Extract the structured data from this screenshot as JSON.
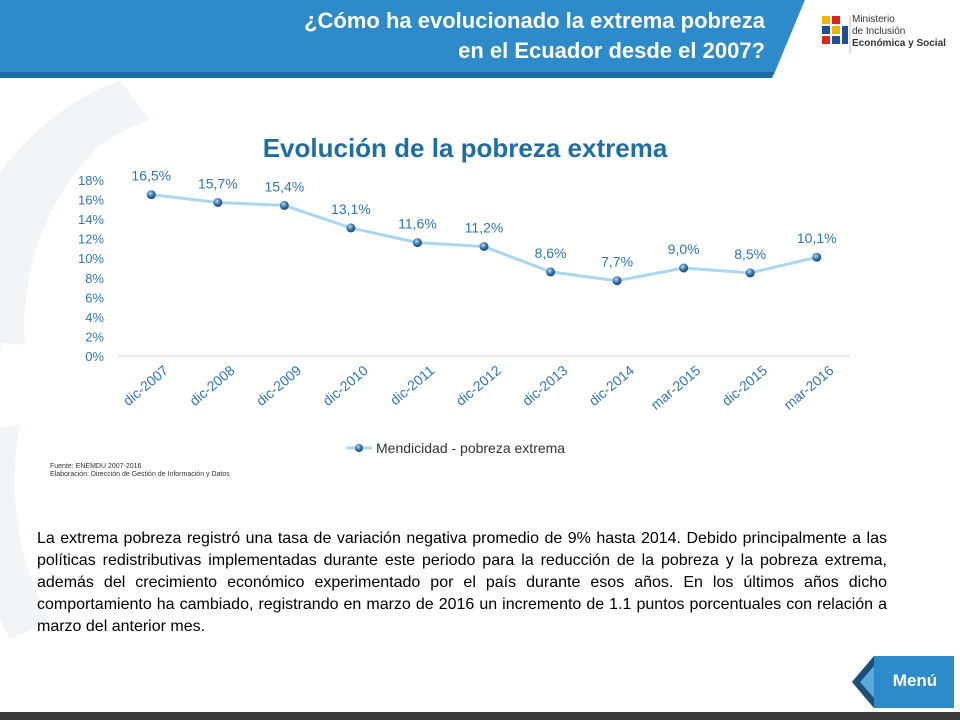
{
  "header": {
    "title_line1": "¿Cómo ha evolucionado la extrema pobreza",
    "title_line2": "en el Ecuador desde el 2007?"
  },
  "logo": {
    "line1": "Ministerio",
    "line2": "de Inclusión",
    "line3": "Económica y Social"
  },
  "chart_data": {
    "type": "line",
    "title": "Evolución de la pobreza extrema",
    "categories": [
      "dic-2007",
      "dic-2008",
      "dic-2009",
      "dic-2010",
      "dic-2011",
      "dic-2012",
      "dic-2013",
      "dic-2014",
      "mar-2015",
      "dic-2015",
      "mar-2016"
    ],
    "series": [
      {
        "name": "Mendicidad - pobreza extrema",
        "values": [
          16.5,
          15.7,
          15.4,
          13.1,
          11.6,
          11.2,
          8.6,
          7.7,
          9.0,
          8.5,
          10.1
        ],
        "labels": [
          "16,5%",
          "15,7%",
          "15,4%",
          "13,1%",
          "11,6%",
          "11,2%",
          "8,6%",
          "7,7%",
          "9,0%",
          "8,5%",
          "10,1%"
        ],
        "color": "#a9d7ef"
      }
    ],
    "yticks": [
      "0%",
      "2%",
      "4%",
      "6%",
      "8%",
      "10%",
      "12%",
      "14%",
      "16%",
      "18%"
    ],
    "ylim": [
      0,
      18
    ],
    "legend_position": "bottom",
    "label_color": "#2f75b5"
  },
  "source": {
    "line1": "Fuente: ENEMDU 2007-2016",
    "line2": "Elaboración: Dirección de Gestión de Información y Datos"
  },
  "paragraph": "La extrema pobreza registró una tasa de variación negativa promedio de 9% hasta 2014. Debido principalmente a las políticas redistributivas implementadas durante este periodo para la reducción de la pobreza y la pobreza extrema, además del crecimiento económico experimentado por el país durante esos años.  En los últimos años dicho comportamiento ha cambiado, registrando en marzo de 2016 un incremento de 1.1 puntos porcentuales con relación a marzo del anterior mes.",
  "menu": {
    "label": "Menú"
  },
  "colors": {
    "header_blue": "#2e8bc9",
    "title_blue": "#1f6ea3",
    "menu_blue": "#2e8bc9",
    "menu_dark": "#1d4f78"
  }
}
